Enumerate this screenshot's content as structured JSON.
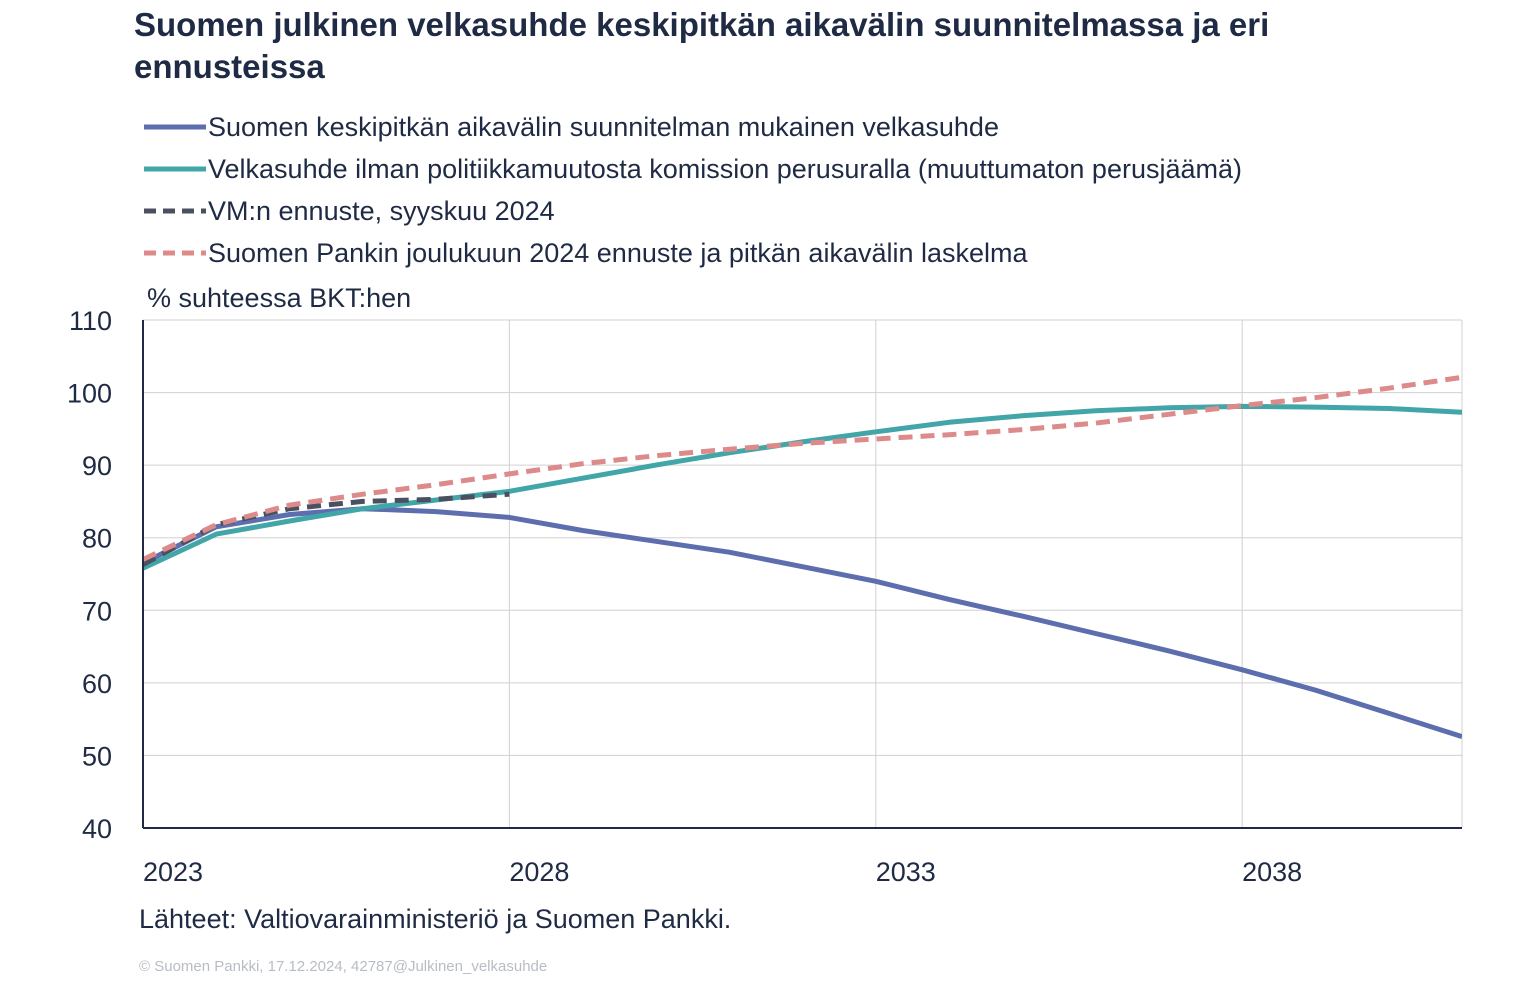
{
  "colors": {
    "text": "#1f2a44",
    "grid": "#d0d0d0",
    "axis": "#1f2a44"
  },
  "footer": {
    "source": "Lähteet: Valtiovarainministeriö ja Suomen Pankki.",
    "copyright": "© Suomen Pankki, 17.12.2024, 42787@Julkinen_velkasuhde"
  },
  "chart_data": {
    "type": "line",
    "title": "Suomen julkinen velkasuhde keskipitkän aikavälin suunnitelmassa ja eri ennusteissa",
    "ylabel": "% suhteessa BKT:hen",
    "xlabel": "",
    "xlim": [
      2023,
      2041
    ],
    "ylim": [
      40,
      110
    ],
    "yticks": [
      40,
      50,
      60,
      70,
      80,
      90,
      100,
      110
    ],
    "xticks": [
      2023,
      2028,
      2033,
      2038
    ],
    "grid": true,
    "legend_position": "top-left",
    "series": [
      {
        "name": "Suomen keskipitkän aikavälin suunnitelman mukainen velkasuhde",
        "color": "#5d6eaf",
        "style": "solid",
        "x": [
          2023,
          2024,
          2025,
          2026,
          2027,
          2028,
          2029,
          2030,
          2031,
          2032,
          2033,
          2034,
          2035,
          2036,
          2037,
          2038,
          2039,
          2040,
          2041
        ],
        "y": [
          76.5,
          81.5,
          83.2,
          84.0,
          83.6,
          82.8,
          81.0,
          79.5,
          78.0,
          76.0,
          74.0,
          71.5,
          69.2,
          66.8,
          64.4,
          61.8,
          59.0,
          55.8,
          52.6
        ]
      },
      {
        "name": "Velkasuhde ilman politiikkamuutosta komission perusuralla (muuttumaton perusjäämä)",
        "color": "#42a5a8",
        "style": "solid",
        "x": [
          2023,
          2024,
          2025,
          2026,
          2027,
          2028,
          2029,
          2030,
          2031,
          2032,
          2033,
          2034,
          2035,
          2036,
          2037,
          2038,
          2039,
          2040,
          2041
        ],
        "y": [
          75.8,
          80.5,
          82.3,
          84.0,
          85.2,
          86.4,
          88.2,
          90.0,
          91.7,
          93.2,
          94.6,
          95.9,
          96.8,
          97.5,
          97.9,
          98.1,
          98.0,
          97.8,
          97.3
        ]
      },
      {
        "name": "VM:n ennuste, syyskuu 2024",
        "color": "#4a5060",
        "style": "dashed",
        "x": [
          2023,
          2024,
          2025,
          2026,
          2027,
          2028
        ],
        "y": [
          76.3,
          81.8,
          84.0,
          85.0,
          85.3,
          86.0
        ]
      },
      {
        "name": "Suomen Pankin joulukuun 2024 ennuste ja pitkän aikavälin laskelma",
        "color": "#dc8a8a",
        "style": "dashed",
        "x": [
          2023,
          2024,
          2025,
          2026,
          2027,
          2028,
          2029,
          2030,
          2031,
          2032,
          2033,
          2034,
          2035,
          2036,
          2037,
          2038,
          2039,
          2040,
          2041
        ],
        "y": [
          77.0,
          81.8,
          84.5,
          86.0,
          87.3,
          88.8,
          90.2,
          91.3,
          92.2,
          93.0,
          93.6,
          94.2,
          94.9,
          95.8,
          97.0,
          98.2,
          99.3,
          100.6,
          102.1
        ]
      }
    ]
  }
}
